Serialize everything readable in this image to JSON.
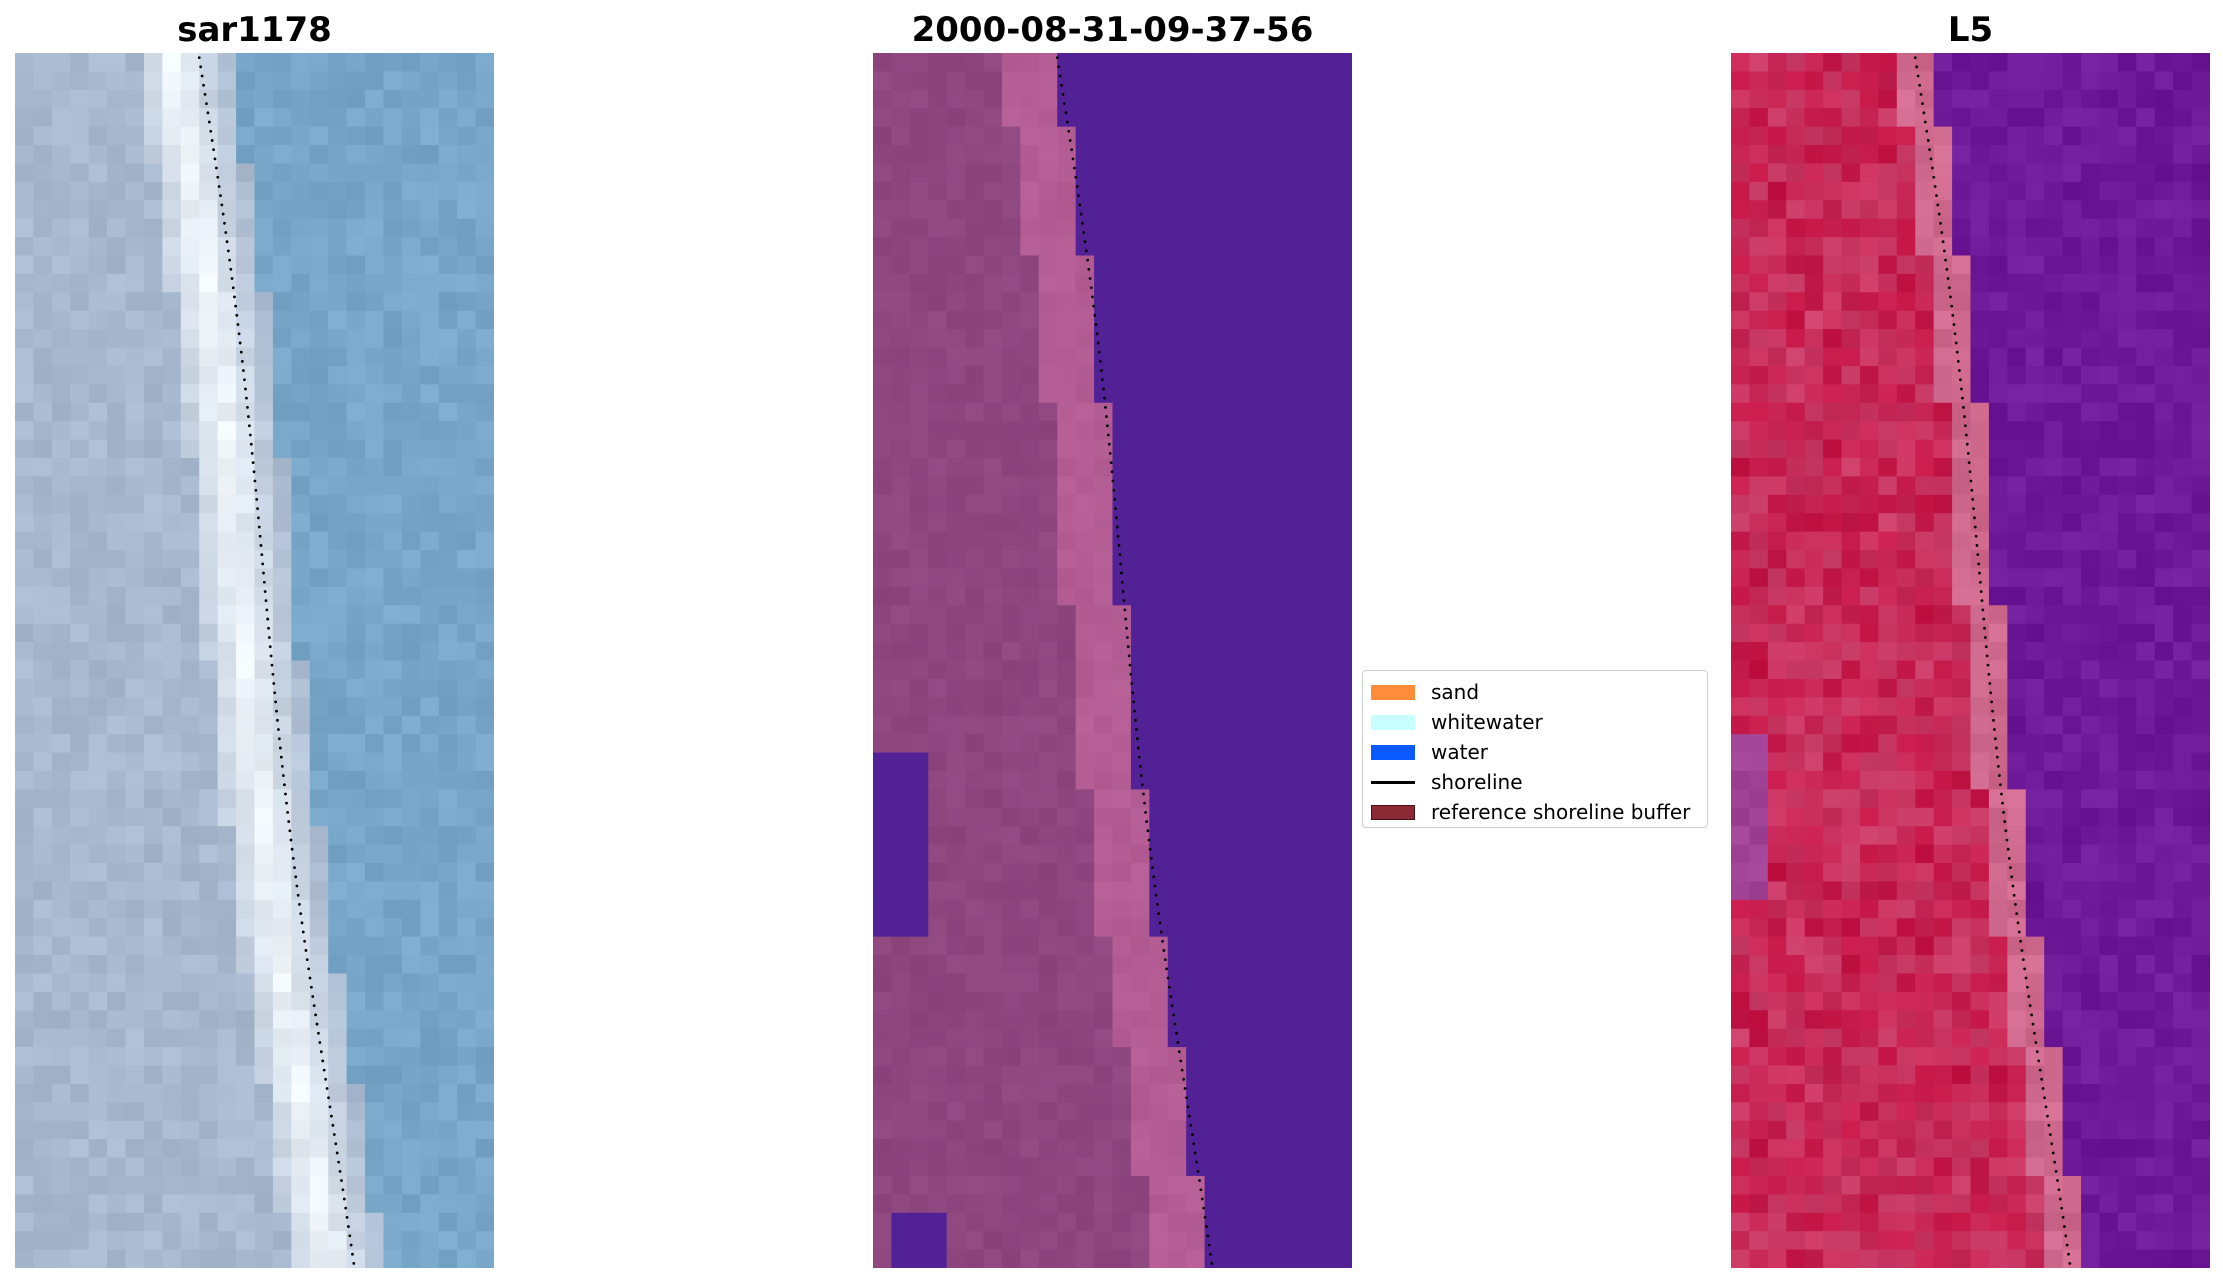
{
  "panels": [
    {
      "title": "sar1178",
      "kind": "rgb"
    },
    {
      "title": "2000-08-31-09-37-56",
      "kind": "classified"
    },
    {
      "title": "L5",
      "kind": "index"
    }
  ],
  "legend": {
    "items": [
      {
        "label": "sand",
        "color": "#ff8c3a",
        "type": "patch"
      },
      {
        "label": "whitewater",
        "color": "#c8ffff",
        "type": "patch"
      },
      {
        "label": "water",
        "color": "#0a5aff",
        "type": "patch"
      },
      {
        "label": "shoreline",
        "color": "#000000",
        "type": "line"
      },
      {
        "label": "reference shoreline buffer",
        "color": "#8b2a35",
        "type": "patch"
      }
    ]
  },
  "colors": {
    "rgb_water": "#77a6c8",
    "rgb_sand": "#a8b9cf",
    "rgb_white": "#f2f7fb",
    "class_sand": "#8e467f",
    "class_buffer": "#b35d94",
    "class_water": "#512195",
    "index_red": "#c41446",
    "index_pink": "#d0698e",
    "index_purple": "#6e1a98"
  }
}
